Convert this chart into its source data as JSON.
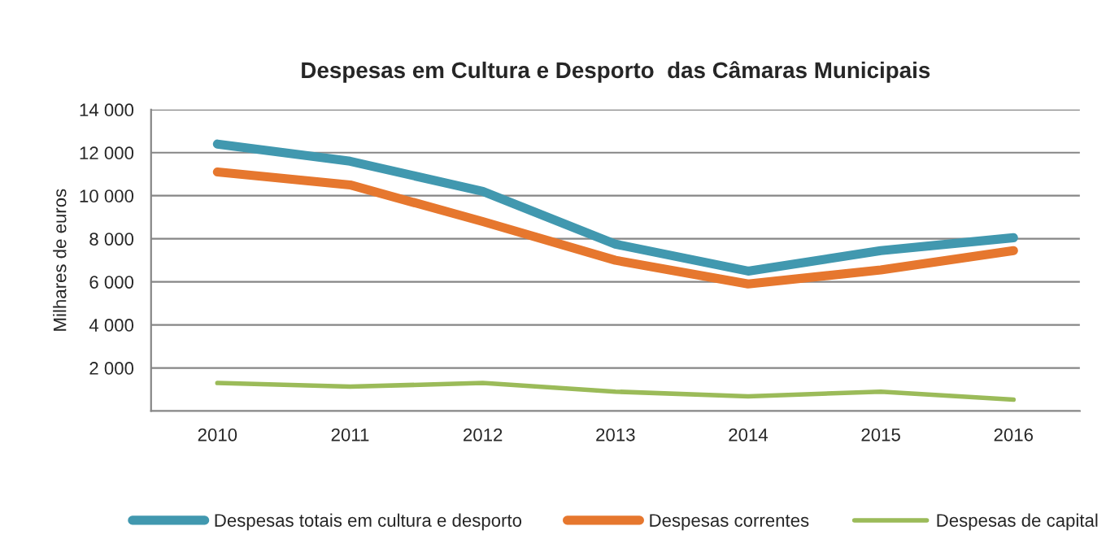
{
  "chart_data": {
    "type": "line",
    "title": "Despesas em Cultura e Desporto  das Câmaras Municipais",
    "ylabel": "Milhares de euros",
    "categories": [
      "2010",
      "2011",
      "2012",
      "2013",
      "2014",
      "2015",
      "2016"
    ],
    "series": [
      {
        "name": "Despesas totais em cultura e desporto",
        "color": "#4198af",
        "values": [
          12400,
          11600,
          10200,
          7750,
          6500,
          7450,
          8050
        ]
      },
      {
        "name": "Despesas correntes",
        "color": "#e6772e",
        "values": [
          11100,
          10500,
          8800,
          7000,
          5900,
          6550,
          7450
        ]
      },
      {
        "name": "Despesas de capital",
        "color": "#9bbb59",
        "values": [
          1300,
          1130,
          1300,
          900,
          680,
          900,
          530
        ]
      }
    ],
    "ylim": [
      0,
      14000
    ],
    "yticks": [
      {
        "value": 0,
        "label": null
      },
      {
        "value": 2000,
        "label": "2 000"
      },
      {
        "value": 4000,
        "label": "4 000"
      },
      {
        "value": 6000,
        "label": "6 000"
      },
      {
        "value": 8000,
        "label": "8 000"
      },
      {
        "value": 10000,
        "label": "10 000"
      },
      {
        "value": 12000,
        "label": "12 000"
      },
      {
        "value": 14000,
        "label": "14 000"
      }
    ],
    "grid": "y",
    "legend": "bottom",
    "marker": "none",
    "line_style": "solid"
  }
}
